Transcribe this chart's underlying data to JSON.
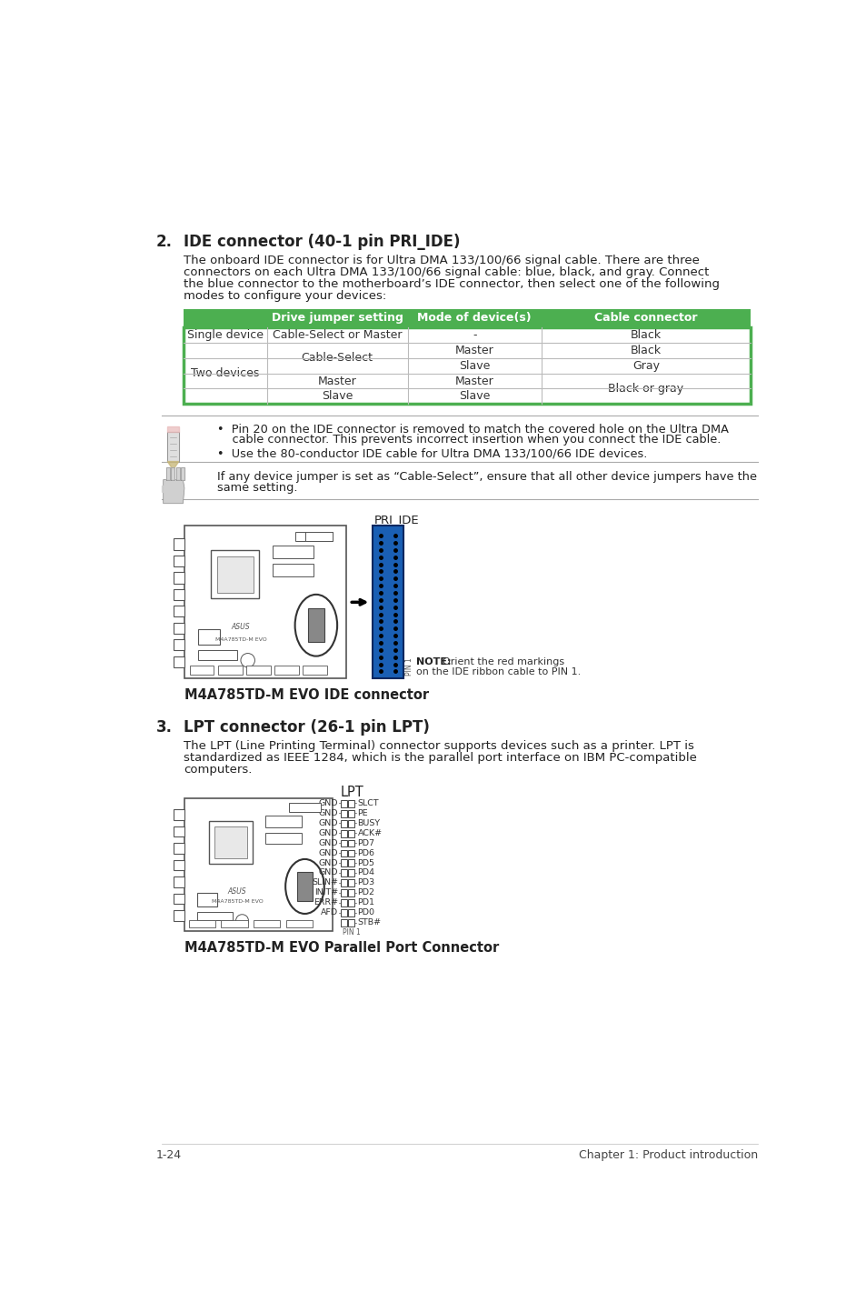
{
  "page_bg": "#ffffff",
  "section2_num": "2.",
  "section2_title": "IDE connector (40-1 pin PRI_IDE)",
  "section2_body": [
    "The onboard IDE connector is for Ultra DMA 133/100/66 signal cable. There are three",
    "connectors on each Ultra DMA 133/100/66 signal cable: blue, black, and gray. Connect",
    "the blue connector to the motherboard’s IDE connector, then select one of the following",
    "modes to configure your devices:"
  ],
  "table_header_bg": "#4caf50",
  "table_border_color": "#4caf50",
  "table_headers": [
    "Drive jumper setting",
    "Mode of device(s)",
    "Cable connector"
  ],
  "note1_bullet": "Pin 20 on the IDE connector is removed to match the covered hole on the Ultra DMA",
  "note1_cont": "cable connector. This prevents incorrect insertion when you connect the IDE cable.",
  "note2_bullet": "Use the 80-conductor IDE cable for Ultra DMA 133/100/66 IDE devices.",
  "tip_line1": "If any device jumper is set as “Cable-Select”, ensure that all other device jumpers have the",
  "tip_line2": "same setting.",
  "ide_label": "PRI_IDE",
  "ide_connector_color": "#1a5fb4",
  "ide_caption": "M4A785TD-M EVO IDE connector",
  "ide_note_bold": "NOTE:",
  "ide_note_1": "Orient the red markings",
  "ide_note_2": "on the IDE ribbon cable to PIN 1.",
  "section3_num": "3.",
  "section3_title": "LPT connector (26-1 pin LPT)",
  "section3_body": [
    "The LPT (Line Printing Terminal) connector supports devices such as a printer. LPT is",
    "standardized as IEEE 1284, which is the parallel port interface on IBM PC-compatible",
    "computers."
  ],
  "lpt_label": "LPT",
  "lpt_left_labels": [
    "GND",
    "GND",
    "GND",
    "GND",
    "GND",
    "GND",
    "GND",
    "GND",
    "SLIN#",
    "INIT#",
    "ERR#",
    "AFD"
  ],
  "lpt_right_labels": [
    "SLCT",
    "PE",
    "BUSY",
    "ACK#",
    "PD7",
    "PD6",
    "PD5",
    "PD4",
    "PD3",
    "PD2",
    "PD1",
    "PD0",
    "STB#"
  ],
  "lpt_caption": "M4A785TD-M EVO Parallel Port Connector",
  "footer_left": "1-24",
  "footer_right": "Chapter 1: Product introduction"
}
